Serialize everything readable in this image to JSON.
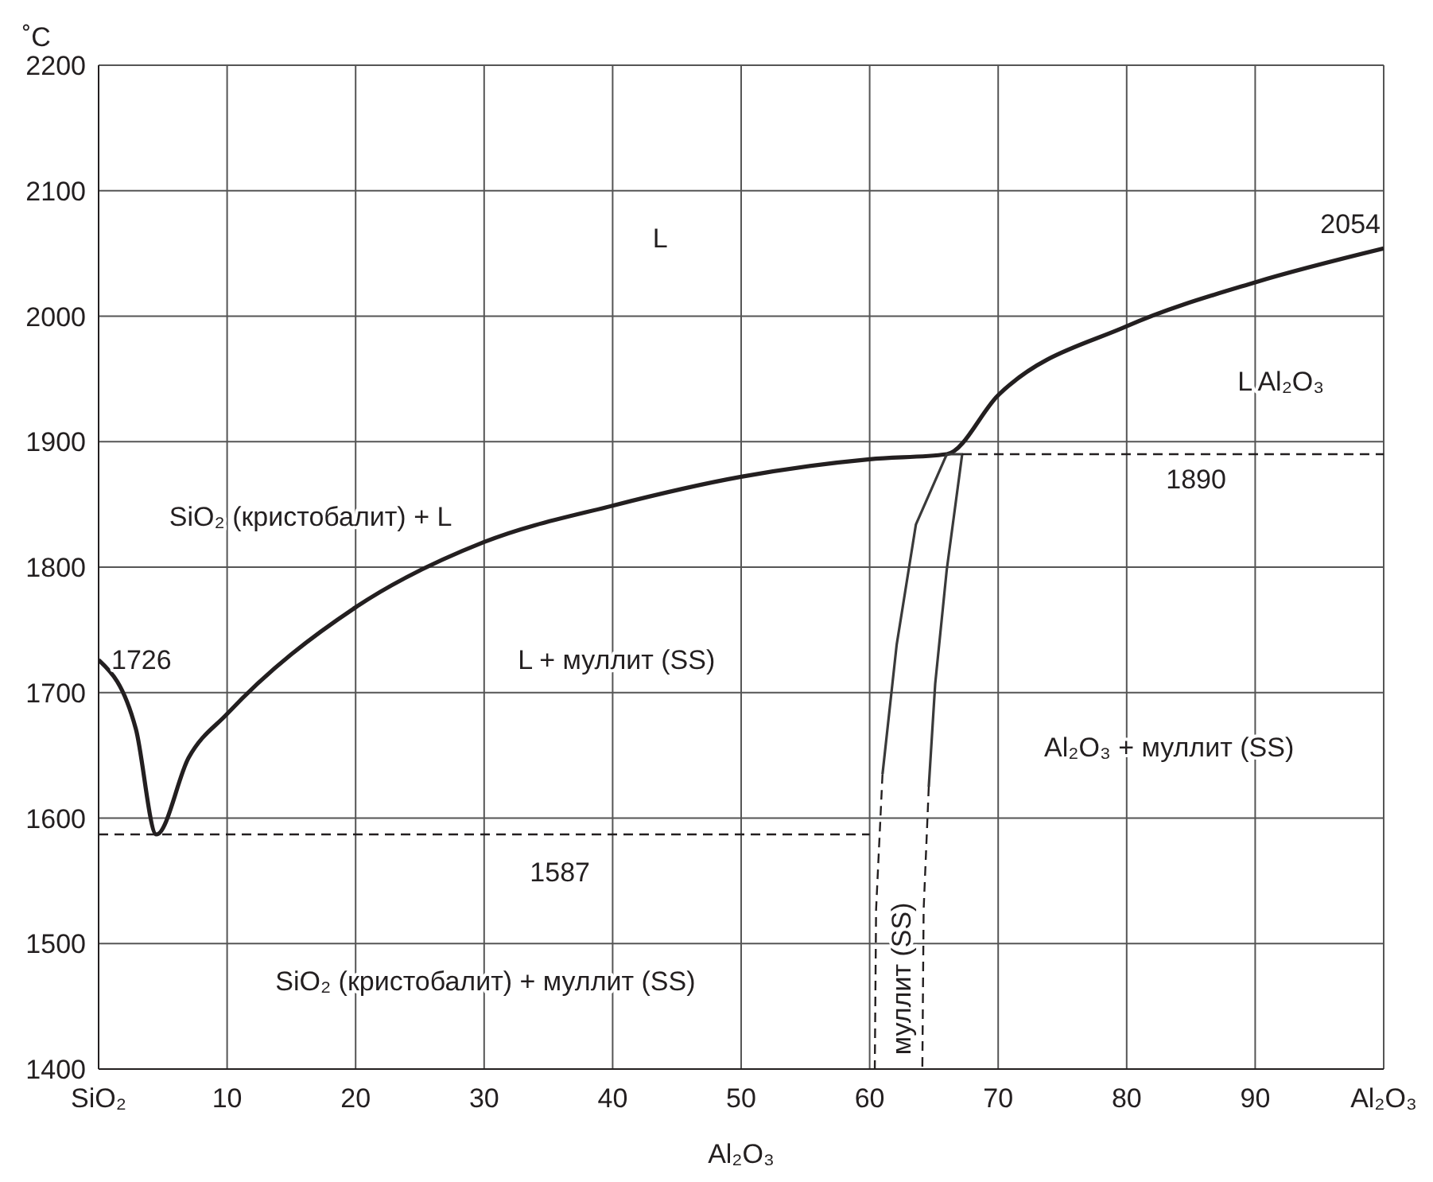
{
  "chart_data": {
    "type": "line",
    "xlabel": "Al₂O₃",
    "ylabel": "˚C",
    "xlim": [
      0,
      100
    ],
    "xticks": [
      {
        "value": 0,
        "label": "SiO₂"
      },
      10,
      20,
      30,
      40,
      50,
      60,
      70,
      80,
      90,
      {
        "value": 100,
        "label": "Al₂O₃"
      }
    ],
    "ylim": [
      1400,
      2200
    ],
    "yticks": [
      1400,
      1500,
      1600,
      1700,
      1800,
      1900,
      2000,
      2100,
      2200
    ],
    "grid": true,
    "legend": false,
    "marker": "none",
    "series": [
      {
        "color": "#231f20",
        "line_style": "solid",
        "x": [
          0,
          2.9,
          4.5,
          7,
          10,
          20,
          30,
          40,
          50,
          60,
          66,
          70,
          80,
          90,
          100
        ],
        "values": [
          1726,
          1671,
          1587,
          1648,
          1683,
          1768,
          1820,
          1849,
          1872,
          1886,
          1890,
          1937,
          1992,
          2027,
          2054
        ]
      },
      {
        "color": "#3a3a3a",
        "line_style": "solid",
        "x": [
          61,
          62.1,
          63.6,
          66,
          67.2,
          66,
          65.1,
          64.6
        ],
        "values": [
          1635,
          1738,
          1834,
          1890,
          1890,
          1798,
          1707,
          1625
        ]
      },
      {
        "color": "#231f20",
        "line_style": "dashed",
        "x": [
          61,
          60.5,
          60.4
        ],
        "values": [
          1635,
          1527,
          1400
        ]
      },
      {
        "color": "#231f20",
        "line_style": "dashed",
        "x": [
          64.6,
          64.2,
          64.1
        ],
        "values": [
          1625,
          1527,
          1400
        ]
      },
      {
        "color": "#231f20",
        "line_style": "dashed",
        "x": [
          0,
          60
        ],
        "values": [
          1587,
          1587
        ]
      },
      {
        "color": "#231f20",
        "line_style": "dashed",
        "x": [
          67.2,
          100
        ],
        "values": [
          1890,
          1890
        ]
      }
    ],
    "annotations": [
      "L",
      "L Al₂O₃",
      "SiO₂ (кристобалит) + L",
      "L + муллит (SS)",
      "Al₂O₃ + муллит (SS)",
      "SiO₂ (кристобалит) + муллит (SS)",
      "муллит (SS)",
      {
        "text": "1726",
        "x": 0,
        "y": 1726
      },
      {
        "text": "1587",
        "x": 35.9,
        "y": 1587
      },
      {
        "text": "1890",
        "x": 85.4,
        "y": 1890
      },
      {
        "text": "2054",
        "x": 100,
        "y": 2054
      }
    ]
  }
}
